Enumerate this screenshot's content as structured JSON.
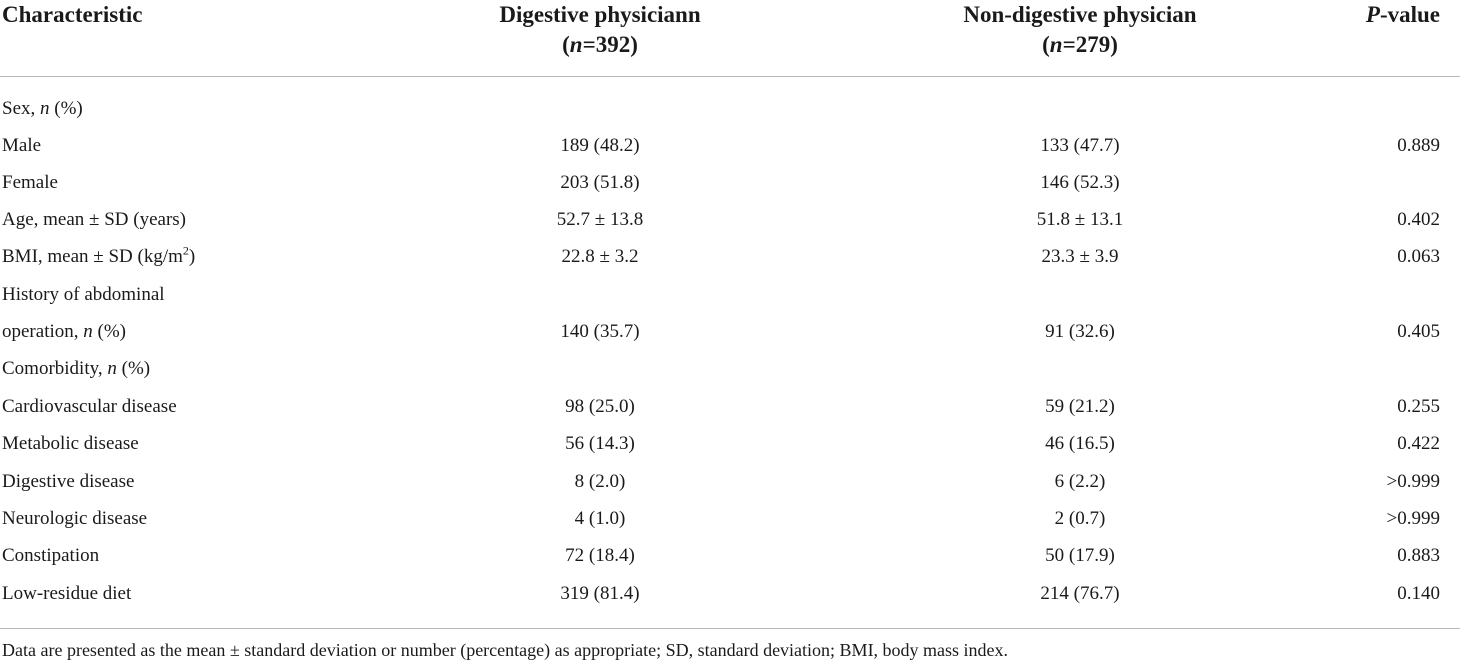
{
  "header": {
    "characteristic": "Characteristic",
    "digestive_line1": "Digestive physiciann",
    "digestive_n": "n",
    "digestive_count": "=392)",
    "nondigestive_line1": "Non-digestive physician",
    "nondigestive_n": "n",
    "nondigestive_count": "=279)",
    "p_italic": "P",
    "p_rest": "-value"
  },
  "rows": [
    {
      "label": "Sex, ",
      "label_italic": "n",
      "label_suffix": " (%)",
      "digestive": "",
      "nondigestive": "",
      "p": ""
    },
    {
      "label": "Male",
      "digestive": "189 (48.2)",
      "nondigestive": "133 (47.7)",
      "p": "0.889"
    },
    {
      "label": "Female",
      "digestive": "203 (51.8)",
      "nondigestive": "146 (52.3)",
      "p": ""
    },
    {
      "label": "Age, mean ± SD (years)",
      "digestive": "52.7 ± 13.8",
      "nondigestive": "51.8 ± 13.1",
      "p": "0.402"
    },
    {
      "label": "BMI, mean ± SD (kg/m",
      "label_sup": "2",
      "label_suffix": ")",
      "digestive": "22.8 ± 3.2",
      "nondigestive": "23.3 ± 3.9",
      "p": "0.063"
    },
    {
      "label": "History of abdominal",
      "digestive": "",
      "nondigestive": "",
      "p": ""
    },
    {
      "label": "operation, ",
      "label_italic": "n",
      "label_suffix": " (%)",
      "digestive": "140 (35.7)",
      "nondigestive": "91 (32.6)",
      "p": "0.405"
    },
    {
      "label": "Comorbidity, ",
      "label_italic": "n",
      "label_suffix": " (%)",
      "digestive": "",
      "nondigestive": "",
      "p": ""
    },
    {
      "label": "Cardiovascular disease",
      "digestive": "98 (25.0)",
      "nondigestive": "59 (21.2)",
      "p": "0.255"
    },
    {
      "label": "Metabolic disease",
      "digestive": "56 (14.3)",
      "nondigestive": "46 (16.5)",
      "p": "0.422"
    },
    {
      "label": "Digestive disease",
      "digestive": "8 (2.0)",
      "nondigestive": "6 (2.2)",
      "p": ">0.999"
    },
    {
      "label": "Neurologic disease",
      "digestive": "4 (1.0)",
      "nondigestive": "2 (0.7)",
      "p": ">0.999"
    },
    {
      "label": "Constipation",
      "digestive": "72 (18.4)",
      "nondigestive": "50 (17.9)",
      "p": "0.883"
    },
    {
      "label": "Low-residue diet",
      "digestive": "319 (81.4)",
      "nondigestive": "214 (76.7)",
      "p": "0.140"
    }
  ],
  "footnote": "Data are presented as the mean ± standard deviation or number (percentage) as appropriate; SD, standard deviation; BMI, body mass index."
}
